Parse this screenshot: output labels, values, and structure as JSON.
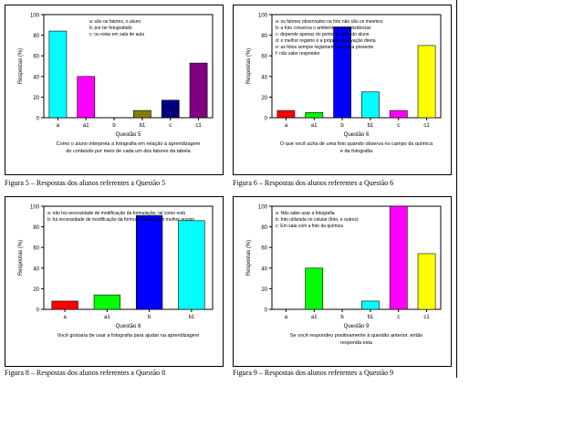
{
  "figures": [
    {
      "caption": "Figura 5 – Respostas dos alunos referentes a Questão 5"
    },
    {
      "caption": "Figura 6 – Respostas dos alunos referentes a Questão 6"
    },
    {
      "caption": "Figura 8 – Respostas dos alunos referentes a Questão 8"
    },
    {
      "caption": "Figura 9 – Respostas dos alunos referentes a Questão 9"
    }
  ],
  "chart_data": [
    {
      "type": "bar",
      "ylabel": "Respostas (%)",
      "xlabel": "Questão 5",
      "subtitle": "Como o aluno interpreta a fotografia em relação à aprendizagem do conteúdo por meio de cada um dos fatores da tabela",
      "ylim": [
        0,
        100
      ],
      "yticks": [
        0,
        20,
        40,
        60,
        80,
        100
      ],
      "categories": [
        "a",
        "a1",
        "b",
        "b1",
        "c",
        "c1"
      ],
      "values": [
        84,
        40,
        0,
        7,
        17,
        53
      ],
      "colors": [
        "#00ffff",
        "#ff00ff",
        "#00ff00",
        "#808000",
        "#000080",
        "#800080"
      ],
      "annotation": [
        "a: são os fatores, o aluno",
        "b: por ter fotografado",
        "c: ou estar em sala de aula"
      ]
    },
    {
      "type": "bar",
      "ylabel": "Respostas (%)",
      "xlabel": "Questão 6",
      "subtitle": "O que você acha de uma foto quando observa no campo da química e da fotografia",
      "ylim": [
        0,
        100
      ],
      "yticks": [
        0,
        20,
        40,
        60,
        80,
        100
      ],
      "categories": [
        "a",
        "a1",
        "b",
        "b1",
        "c",
        "c1"
      ],
      "values": [
        7,
        5,
        88,
        25,
        7,
        70
      ],
      "colors": [
        "#ff0000",
        "#00ff00",
        "#0000ff",
        "#00ffff",
        "#ff00ff",
        "#ffff00"
      ],
      "annotation": [
        "a: os fatores observados na foto não são os mesmos",
        "b: a foto conserva o ambiente e as substâncias",
        "c: depende apenas do ponto de vista do aluno",
        "d: o melhor registro é a própria observação direta",
        "e: as fotos sempre registram a química presente",
        "f: não sabe responder"
      ]
    },
    {
      "type": "bar",
      "ylabel": "Respostas (%)",
      "xlabel": "Questão 8",
      "subtitle": "Você gostaria de usar a fotografia para ajudar na aprendizagem",
      "ylim": [
        0,
        100
      ],
      "yticks": [
        0,
        20,
        40,
        60,
        80,
        100
      ],
      "categories": [
        "a",
        "a1",
        "b",
        "b1"
      ],
      "values": [
        8,
        14,
        91,
        86
      ],
      "colors": [
        "#ff0000",
        "#00ff00",
        "#0000ff",
        "#00ffff"
      ],
      "annotation": [
        "a: não há necessidade de modificação da formulação, tal como está",
        "b: há necessidade de modificação da formulação para um melhor ensino"
      ]
    },
    {
      "type": "bar",
      "ylabel": "Respostas (%)",
      "xlabel": "Questão 9",
      "subtitle": "Se você respondeu positivamente à questão anterior, então responda esta",
      "ylim": [
        0,
        100
      ],
      "yticks": [
        0,
        20,
        40,
        60,
        80,
        100
      ],
      "categories": [
        "a",
        "a1",
        "b",
        "b1",
        "c",
        "c1"
      ],
      "values": [
        0,
        40,
        0,
        8,
        100,
        54
      ],
      "colors": [
        "#ff0000",
        "#00ff00",
        "#0000ff",
        "#00ffff",
        "#ff00ff",
        "#ffff00"
      ],
      "annotation": [
        "a: Não sabe usar a fotografia",
        "b: foto utilizada no celular (foto, e outros)",
        "c: Em sala com a foto da química"
      ]
    }
  ]
}
